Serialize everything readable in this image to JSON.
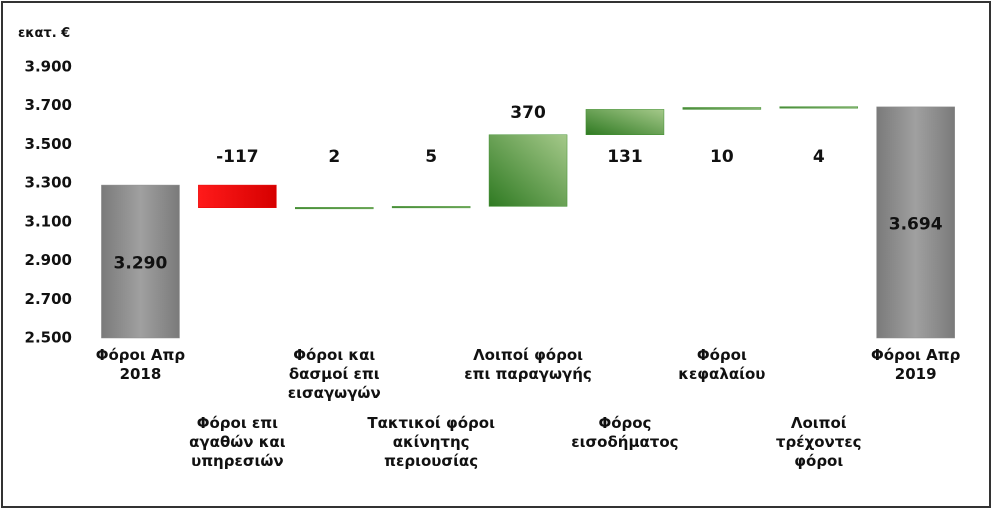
{
  "chart_data": {
    "type": "waterfall",
    "y_label": "εκατ. €",
    "categories": [
      "Φόροι Απρ 2018",
      "Φόροι επι αγαθών και υπηρεσιών",
      "Φόροι και δασμοί επι εισαγωγών",
      "Τακτικοί φόροι ακίνητης περιουσίας",
      "Λοιποί φόροι επι παραγωγής",
      "Φόρος εισοδήματος",
      "Φόροι κεφαλαίου",
      "Λοιποί τρέχοντες φόροι",
      "Φόροι Απρ 2019"
    ],
    "values": [
      3290,
      -117,
      2,
      5,
      370,
      131,
      10,
      4,
      3694
    ],
    "value_labels": [
      "3.290",
      "-117",
      "2",
      "5",
      "370",
      "131",
      "10",
      "4",
      "3.694"
    ],
    "measure": [
      "total",
      "relative",
      "relative",
      "relative",
      "relative",
      "relative",
      "relative",
      "relative",
      "total"
    ],
    "colors": {
      "total": "#8a8a8a",
      "increase": "#3f8f2f",
      "decrease": "#e60000"
    },
    "ylim": [
      2500,
      3900
    ],
    "yticks": [
      {
        "value": 2500,
        "label": "2.500"
      },
      {
        "value": 2700,
        "label": "2.700"
      },
      {
        "value": 2900,
        "label": "2.900"
      },
      {
        "value": 3100,
        "label": "3.100"
      },
      {
        "value": 3300,
        "label": "3.300"
      },
      {
        "value": 3500,
        "label": "3.500"
      },
      {
        "value": 3700,
        "label": "3.700"
      },
      {
        "value": 3900,
        "label": "3.900"
      }
    ]
  }
}
